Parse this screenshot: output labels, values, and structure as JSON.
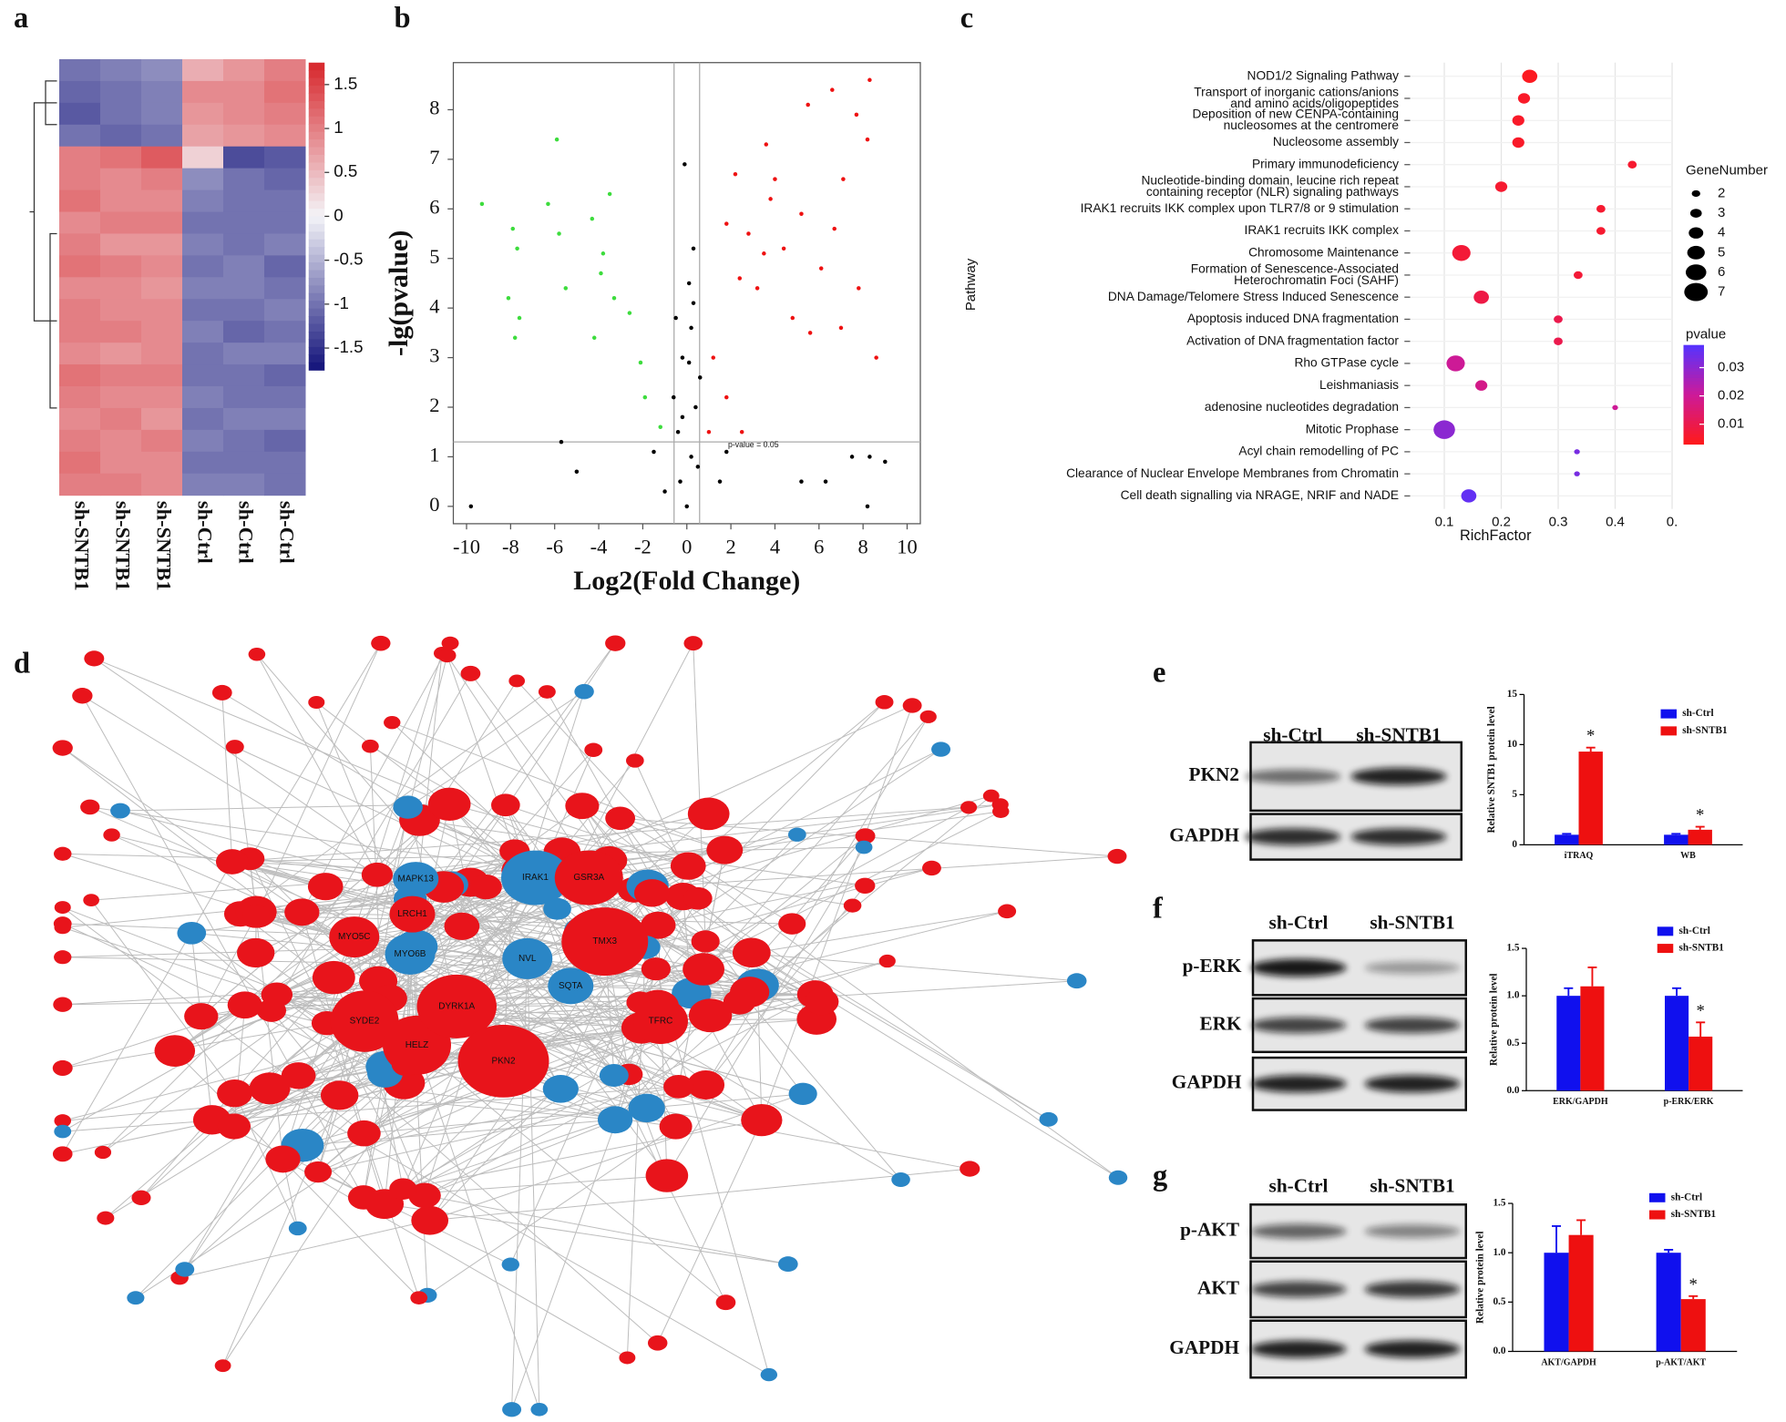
{
  "panel_labels": [
    "a",
    "b",
    "c",
    "d",
    "e",
    "f",
    "g"
  ],
  "chart_data": [
    {
      "type": "heatmap",
      "categories": [
        "sh-SNTB1",
        "sh-SNTB1",
        "sh-SNTB1",
        "sh-Ctrl",
        "sh-Ctrl",
        "sh-Ctrl"
      ],
      "values": [
        [
          -1.0,
          -0.9,
          -0.8,
          0.6,
          0.8,
          1.0
        ],
        [
          -1.1,
          -1.0,
          -0.9,
          0.9,
          0.9,
          1.1
        ],
        [
          -1.2,
          -1.0,
          -0.9,
          0.8,
          0.9,
          1.0
        ],
        [
          -1.0,
          -1.1,
          -1.0,
          0.7,
          0.8,
          0.9
        ],
        [
          1.0,
          1.1,
          1.3,
          0.3,
          -1.3,
          -1.2
        ],
        [
          1.0,
          0.9,
          1.0,
          -0.8,
          -1.0,
          -1.1
        ],
        [
          1.1,
          0.9,
          0.9,
          -0.9,
          -1.0,
          -1.0
        ],
        [
          0.9,
          1.0,
          1.0,
          -1.0,
          -1.0,
          -1.0
        ],
        [
          1.0,
          0.8,
          0.8,
          -0.9,
          -1.0,
          -0.9
        ],
        [
          1.1,
          1.0,
          0.9,
          -1.0,
          -0.9,
          -1.1
        ],
        [
          0.9,
          0.9,
          0.8,
          -0.9,
          -0.9,
          -1.0
        ],
        [
          1.0,
          0.9,
          0.9,
          -1.0,
          -1.0,
          -0.9
        ],
        [
          1.0,
          1.0,
          0.9,
          -0.9,
          -1.1,
          -1.0
        ],
        [
          0.9,
          0.8,
          0.9,
          -1.0,
          -0.9,
          -0.9
        ],
        [
          1.1,
          1.0,
          1.0,
          -1.0,
          -1.0,
          -1.1
        ],
        [
          1.0,
          0.9,
          0.9,
          -0.9,
          -1.0,
          -1.0
        ],
        [
          0.9,
          1.0,
          0.8,
          -1.0,
          -0.9,
          -0.9
        ],
        [
          1.0,
          0.9,
          1.0,
          -0.9,
          -1.0,
          -1.1
        ],
        [
          1.1,
          0.9,
          0.9,
          -1.0,
          -1.0,
          -1.0
        ],
        [
          1.0,
          1.0,
          0.9,
          -0.9,
          -0.9,
          -1.0
        ]
      ],
      "colorbar": {
        "lim": [
          -1.75,
          1.75
        ],
        "ticks": [
          1.5,
          1,
          0.5,
          0,
          -0.5,
          -1,
          -1.5
        ],
        "colors": [
          "#12127a",
          "#f4f4f8",
          "#d7262b"
        ]
      }
    },
    {
      "type": "scatter",
      "xlabel": "Log2(Fold Change)",
      "ylabel": "-lg(pvalue)",
      "xlim": [
        -10.6,
        10.6
      ],
      "ylim": [
        -0.35,
        8.95
      ],
      "xticks": [
        -10,
        -8,
        -6,
        -4,
        -2,
        0,
        2,
        4,
        6,
        8,
        10
      ],
      "yticks": [
        0,
        1,
        2,
        3,
        4,
        5,
        6,
        7,
        8
      ],
      "threshold_y": 1.3,
      "threshold_x": [
        -0.58,
        0.58
      ],
      "annotation": "p-value = 0.05",
      "series": [
        {
          "color": "#3ddc3d",
          "x": [
            -9.3,
            -7.9,
            -7.7,
            -8.1,
            -7.6,
            -7.8,
            -6.3,
            -5.8,
            -5.5,
            -4.3,
            -3.8,
            -3.3,
            -3.5,
            -4.2,
            -2.6,
            -2.1,
            -1.9,
            -1.2,
            -5.9,
            -3.9
          ],
          "y": [
            6.1,
            5.6,
            5.2,
            4.2,
            3.8,
            3.4,
            6.1,
            5.5,
            4.4,
            5.8,
            5.1,
            4.2,
            6.3,
            3.4,
            3.9,
            2.9,
            2.2,
            1.6,
            7.4,
            4.7
          ]
        },
        {
          "color": "#000000",
          "x": [
            0,
            -0.3,
            0.2,
            0.4,
            -0.2,
            0.1,
            0.3,
            -0.4,
            0.5,
            0.2,
            -0.1,
            1.5,
            -1,
            -5,
            -9.8,
            -5.7,
            5.2,
            6.3,
            7.5,
            8.3,
            9,
            8.2,
            -1.5,
            1.8,
            -0.5,
            0.6,
            -0.6,
            0.1,
            -0.2,
            0.3
          ],
          "y": [
            0,
            0.5,
            1,
            2,
            3,
            4.5,
            5.2,
            1.5,
            0.8,
            3.6,
            6.9,
            0.5,
            0.3,
            0.7,
            0,
            1.3,
            0.5,
            0.5,
            1,
            1,
            0.9,
            0,
            1.1,
            1.1,
            3.8,
            2.6,
            2.2,
            2.9,
            1.8,
            4.1
          ]
        },
        {
          "color": "#ee1111",
          "x": [
            8.3,
            6.6,
            5.5,
            7.7,
            3.6,
            8.2,
            2.2,
            3.8,
            5.2,
            6.7,
            7.1,
            2.8,
            4.4,
            1.8,
            3.2,
            2.4,
            6.1,
            7.8,
            8.6,
            5.6,
            4.8,
            1.2,
            1.8,
            1,
            2.5,
            7,
            3.5,
            4
          ],
          "y": [
            8.6,
            8.4,
            8.1,
            7.9,
            7.3,
            7.4,
            6.7,
            6.2,
            5.9,
            5.6,
            6.6,
            5.5,
            5.2,
            5.7,
            4.4,
            4.6,
            4.8,
            4.4,
            3,
            3.5,
            3.8,
            3,
            2.2,
            1.5,
            1.5,
            3.6,
            5.1,
            6.6
          ]
        }
      ]
    },
    {
      "type": "dot",
      "categories": [
        [
          "NOD1/2 Signaling Pathway"
        ],
        [
          "Transport of inorganic cations/anions",
          "and amino acids/oligopeptides"
        ],
        [
          "Deposition of new CENPA-containing",
          "nucleosomes at the centromere"
        ],
        [
          "Nucleosome assembly"
        ],
        [
          "Primary immunodeficiency"
        ],
        [
          "Nucleotide-binding domain, leucine rich repeat",
          "containing receptor (NLR) signaling pathways"
        ],
        [
          "IRAK1 recruits IKK complex upon TLR7/8 or 9 stimulation"
        ],
        [
          "IRAK1 recruits IKK complex"
        ],
        [
          "Chromosome Maintenance"
        ],
        [
          "Formation of Senescence-Associated",
          "Heterochromatin Foci (SAHF)"
        ],
        [
          "DNA Damage/Telomere Stress Induced Senescence"
        ],
        [
          "Apoptosis induced DNA fragmentation"
        ],
        [
          "Activation of DNA fragmentation factor"
        ],
        [
          "Rho GTPase cycle"
        ],
        [
          "Leishmaniasis"
        ],
        [
          "adenosine nucleotides degradation"
        ],
        [
          "Mitotic Prophase"
        ],
        [
          "Acyl chain remodelling of PC"
        ],
        [
          "Clearance of Nuclear Envelope Membranes from Chromatin"
        ],
        [
          "Cell death signalling via NRAGE, NRIF and NADE"
        ]
      ],
      "x": [
        0.25,
        0.24,
        0.23,
        0.23,
        0.43,
        0.2,
        0.375,
        0.375,
        0.13,
        0.335,
        0.165,
        0.3,
        0.3,
        0.12,
        0.165,
        0.4,
        0.1,
        0.333,
        0.333,
        0.143
      ],
      "sizes": [
        4,
        3,
        3,
        3,
        2,
        3,
        2,
        2,
        5,
        2,
        4,
        2,
        2,
        5,
        3,
        1,
        6,
        1,
        1,
        4
      ],
      "pvalues": [
        0.004,
        0.005,
        0.005,
        0.005,
        0.006,
        0.006,
        0.006,
        0.006,
        0.007,
        0.007,
        0.009,
        0.01,
        0.01,
        0.02,
        0.018,
        0.02,
        0.03,
        0.033,
        0.033,
        0.036
      ],
      "xlim": [
        0.04,
        0.5
      ],
      "xticks": [
        0.1,
        0.2,
        0.3,
        0.4,
        {
          "value": 0.5,
          "label": "0."
        }
      ],
      "xlabel": "RichFactor",
      "ylabel": "Pathway",
      "size_legend": {
        "title": "GeneNumber",
        "values": [
          2,
          3,
          4,
          5,
          6,
          7
        ]
      },
      "color_legend": {
        "title": "pvalue",
        "lim": [
          0.003,
          0.038
        ],
        "ticks": [
          0.03,
          0.02,
          0.01
        ],
        "colors": [
          "#ff1a1a",
          "#cc1a9a",
          "#5533ff"
        ]
      }
    },
    {
      "type": "bar",
      "categories": [
        "iTRAQ",
        "WB"
      ],
      "ylabel": "Relative SNTB1 protein level",
      "ylim": [
        0,
        15
      ],
      "yticks": [
        0,
        5,
        10,
        15
      ],
      "series": [
        {
          "name": "sh-Ctrl",
          "color": "#1010ee",
          "values": [
            1,
            1
          ],
          "errors": [
            0.1,
            0.1
          ]
        },
        {
          "name": "sh-SNTB1",
          "color": "#ee1010",
          "values": [
            9.3,
            1.5
          ],
          "errors": [
            0.4,
            0.3
          ],
          "annotations": [
            "*",
            "*"
          ]
        }
      ]
    },
    {
      "type": "bar",
      "categories": [
        "ERK/GAPDH",
        "p-ERK/ERK"
      ],
      "ylabel": "Relative protein level",
      "ylim": [
        0,
        1.5
      ],
      "yticks": [
        {
          "value": 0,
          "label": "0.0"
        },
        0.5,
        {
          "value": 1,
          "label": "1.0"
        },
        1.5
      ],
      "series": [
        {
          "name": "sh-Ctrl",
          "color": "#1010ee",
          "values": [
            1,
            1
          ],
          "errors": [
            0.08,
            0.08
          ]
        },
        {
          "name": "sh-SNTB1",
          "color": "#ee1010",
          "values": [
            1.1,
            0.57
          ],
          "errors": [
            0.2,
            0.15
          ],
          "annotations": [
            null,
            "*"
          ]
        }
      ]
    },
    {
      "type": "bar",
      "categories": [
        "AKT/GAPDH",
        "p-AKT/AKT"
      ],
      "ylabel": "Relative protein level",
      "ylim": [
        0,
        1.5
      ],
      "yticks": [
        {
          "value": 0,
          "label": "0.0"
        },
        0.5,
        {
          "value": 1,
          "label": "1.0"
        },
        1.5
      ],
      "series": [
        {
          "name": "sh-Ctrl",
          "color": "#1010ee",
          "values": [
            1,
            1
          ],
          "errors": [
            0.27,
            0.03
          ]
        },
        {
          "name": "sh-SNTB1",
          "color": "#ee1010",
          "values": [
            1.18,
            0.53
          ],
          "errors": [
            0.15,
            0.03
          ],
          "annotations": [
            null,
            "*"
          ]
        }
      ]
    }
  ],
  "network": {
    "colors": {
      "up": "#e8141b",
      "down": "#2a86c6"
    },
    "nodes": [
      {
        "label": "PKN2",
        "group": "up"
      },
      {
        "label": "TMX3",
        "group": "up"
      },
      {
        "label": "DYRK1A",
        "group": "up"
      },
      {
        "label": "HELZ",
        "group": "up"
      },
      {
        "label": "SYDE2",
        "group": "up"
      },
      {
        "label": "GSR3A",
        "group": "up"
      },
      {
        "label": "IRAK1",
        "group": "down"
      },
      {
        "label": "NVL",
        "group": "down"
      },
      {
        "label": "MYO6B",
        "group": "down"
      },
      {
        "label": "MAPK13",
        "group": "down"
      },
      {
        "label": "LRCH1",
        "group": "up"
      },
      {
        "label": "MYO5C",
        "group": "up"
      },
      {
        "label": "SQTA",
        "group": "down"
      },
      {
        "label": "TFRC",
        "group": "up"
      }
    ]
  },
  "blots": [
    {
      "lanes": [
        "sh-Ctrl",
        "sh-SNTB1"
      ],
      "rows": [
        "PKN2",
        "GAPDH"
      ]
    },
    {
      "lanes": [
        "sh-Ctrl",
        "sh-SNTB1"
      ],
      "rows": [
        "p-ERK",
        "ERK",
        "GAPDH"
      ]
    },
    {
      "lanes": [
        "sh-Ctrl",
        "sh-SNTB1"
      ],
      "rows": [
        "p-AKT",
        "AKT",
        "GAPDH"
      ]
    }
  ]
}
